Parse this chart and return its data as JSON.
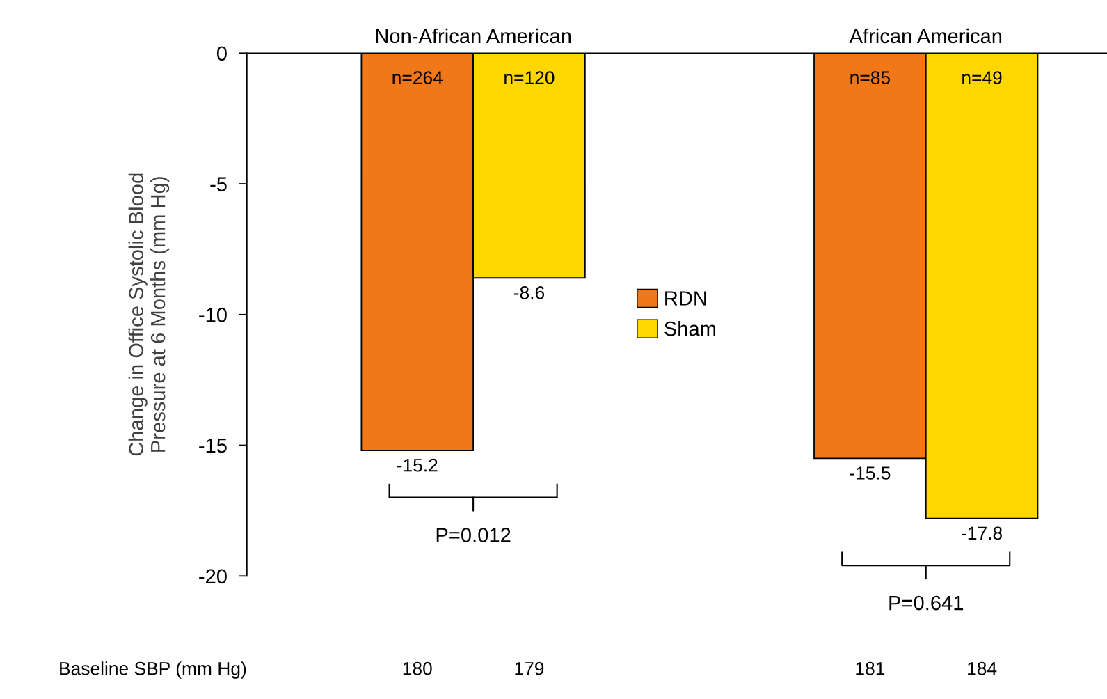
{
  "chart_data": {
    "type": "bar",
    "categories": [
      "Non-African American",
      "African American"
    ],
    "series": [
      {
        "name": "RDN",
        "color": "#f07818",
        "values": [
          -15.2,
          -15.5
        ]
      },
      {
        "name": "Sham",
        "color": "#ffd700",
        "values": [
          -8.6,
          -17.8
        ]
      }
    ],
    "ylabel": "Change in Office Systolic Blood\nPressure at 6 Months (mm Hg)",
    "ylim": [
      -20,
      0
    ],
    "yticks": [
      0,
      -5,
      -10,
      -15,
      -20
    ],
    "data_labels": true,
    "legend": "center",
    "grid": false,
    "annotations": [
      "n=264",
      "n=120",
      "n=85",
      "n=49",
      "P=0.012",
      "P=0.641",
      "Baseline SBP (mm Hg)",
      "180",
      "179",
      "181",
      "184"
    ]
  }
}
